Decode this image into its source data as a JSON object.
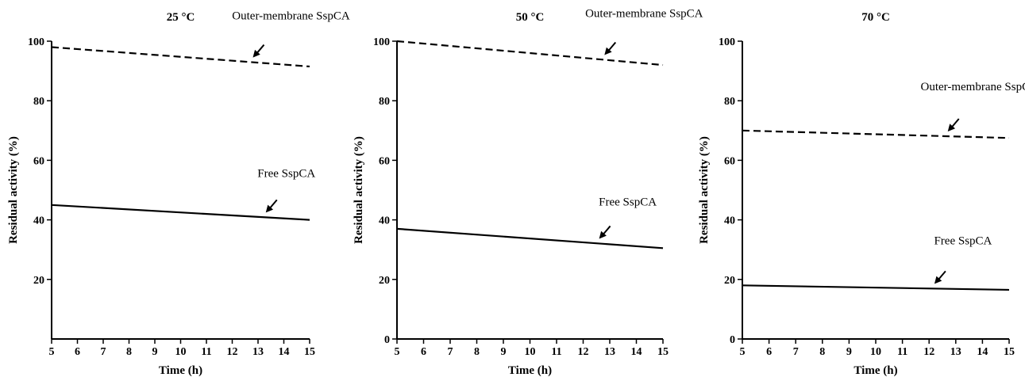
{
  "chart_data": [
    {
      "type": "line",
      "title": "25 °C",
      "xlabel": "Time (h)",
      "ylabel": "Residual activity (%)",
      "xlim": [
        5,
        15
      ],
      "ylim": [
        0,
        100
      ],
      "xticks": [
        5,
        6,
        7,
        8,
        9,
        10,
        11,
        12,
        13,
        14,
        15
      ],
      "yticks": [
        20,
        40,
        60,
        80,
        100
      ],
      "series": [
        {
          "name": "Outer-membrane SspCA",
          "style": "dashed",
          "x": [
            5,
            15
          ],
          "y": [
            98,
            91.5
          ]
        },
        {
          "name": "Free SspCA",
          "style": "solid",
          "x": [
            5,
            15
          ],
          "y": [
            45,
            40
          ]
        }
      ],
      "annotations": [
        {
          "text": "Outer-membrane SspCA",
          "series": 0,
          "arrow_x": 12.8
        },
        {
          "text": "Free SspCA",
          "series": 1,
          "arrow_x": 13.3
        }
      ]
    },
    {
      "type": "line",
      "title": "50 °C",
      "xlabel": "Time (h)",
      "ylabel": "Residual activity (%)",
      "xlim": [
        5,
        15
      ],
      "ylim": [
        0,
        100
      ],
      "xticks": [
        5,
        6,
        7,
        8,
        9,
        10,
        11,
        12,
        13,
        14,
        15
      ],
      "yticks": [
        0,
        20,
        40,
        60,
        80,
        100
      ],
      "series": [
        {
          "name": "Outer-membrane SspCA",
          "style": "dashed",
          "x": [
            5,
            15
          ],
          "y": [
            100,
            92
          ]
        },
        {
          "name": "Free SspCA",
          "style": "solid",
          "x": [
            5,
            15
          ],
          "y": [
            37,
            30.5
          ]
        }
      ],
      "annotations": [
        {
          "text": "Outer-membrane SspCA",
          "series": 0,
          "arrow_x": 12.8
        },
        {
          "text": "Free SspCA",
          "series": 1,
          "arrow_x": 12.6
        }
      ]
    },
    {
      "type": "line",
      "title": "70 °C",
      "xlabel": "Time (h)",
      "ylabel": "Residual activity (%)",
      "xlim": [
        5,
        15
      ],
      "ylim": [
        0,
        100
      ],
      "xticks": [
        5,
        6,
        7,
        8,
        9,
        10,
        11,
        12,
        13,
        14,
        15
      ],
      "yticks": [
        0,
        20,
        40,
        60,
        80,
        100
      ],
      "series": [
        {
          "name": "Outer-membrane SspCA",
          "style": "dashed",
          "x": [
            5,
            15
          ],
          "y": [
            70,
            67.5
          ]
        },
        {
          "name": "Free SspCA",
          "style": "solid",
          "x": [
            5,
            15
          ],
          "y": [
            18,
            16.5
          ]
        }
      ],
      "annotations": [
        {
          "text": "Outer-membrane SspCA",
          "series": 0,
          "arrow_x": 12.7
        },
        {
          "text": "Free SspCA",
          "series": 1,
          "arrow_x": 12.2
        }
      ]
    }
  ]
}
